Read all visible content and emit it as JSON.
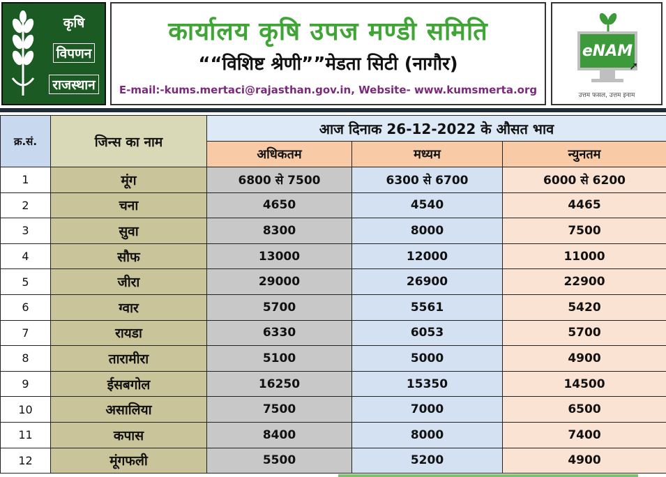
{
  "header": {
    "left_logo": {
      "line1": "कृषि",
      "line2": "विपणन",
      "line3": "राजस्थान"
    },
    "title": "कार्यालय कृषि उपज मण्डी समिति",
    "subtitle": "““विशिष्ट श्रेणी””मेडता सिटी (नागौर)",
    "contact": "E-mail:-kums.mertaci@rajasthan.gov.in, Website- www.kumsmerta.org",
    "right_logo": {
      "brand": "eNAM",
      "tagline": "उत्तम फसल, उत्तम इनाम"
    }
  },
  "table": {
    "col_sn": "क्र.सं.",
    "col_name": "जिन्स का नाम",
    "date_heading": "आज दिनाक 26-12-2022 के औसत भाव",
    "col_max": "अधिकतम",
    "col_mid": "मध्यम",
    "col_min": "न्युनतम",
    "rows": [
      {
        "sn": "1",
        "name": "मूंग",
        "max": "6800 से 7500",
        "mid": "6300 से 6700",
        "min": "6000 से 6200"
      },
      {
        "sn": "2",
        "name": "चना",
        "max": "4650",
        "mid": "4540",
        "min": "4465"
      },
      {
        "sn": "3",
        "name": "सुवा",
        "max": "8300",
        "mid": "8000",
        "min": "7500"
      },
      {
        "sn": "4",
        "name": "सौफ",
        "max": "13000",
        "mid": "12000",
        "min": "11000"
      },
      {
        "sn": "5",
        "name": "जीरा",
        "max": "29000",
        "mid": "26900",
        "min": "22900"
      },
      {
        "sn": "6",
        "name": "ग्वार",
        "max": "5700",
        "mid": "5561",
        "min": "5420"
      },
      {
        "sn": "7",
        "name": "रायडा",
        "max": "6330",
        "mid": "6053",
        "min": "5700"
      },
      {
        "sn": "8",
        "name": "तारामीरा",
        "max": "5100",
        "mid": "5000",
        "min": "4900"
      },
      {
        "sn": "9",
        "name": "ईसबगोल",
        "max": "16250",
        "mid": "15350",
        "min": "14500"
      },
      {
        "sn": "10",
        "name": "असालिया",
        "max": "7500",
        "mid": "7000",
        "min": "6500"
      },
      {
        "sn": "11",
        "name": "कपास",
        "max": "8400",
        "mid": "8000",
        "min": "7400"
      },
      {
        "sn": "12",
        "name": "मूंगफली",
        "max": "5500",
        "mid": "5200",
        "min": "4900"
      }
    ]
  },
  "colors": {
    "brand_green": "#3fa535",
    "logo_green": "#1c5a23",
    "email_purple": "#7b2a7b"
  }
}
